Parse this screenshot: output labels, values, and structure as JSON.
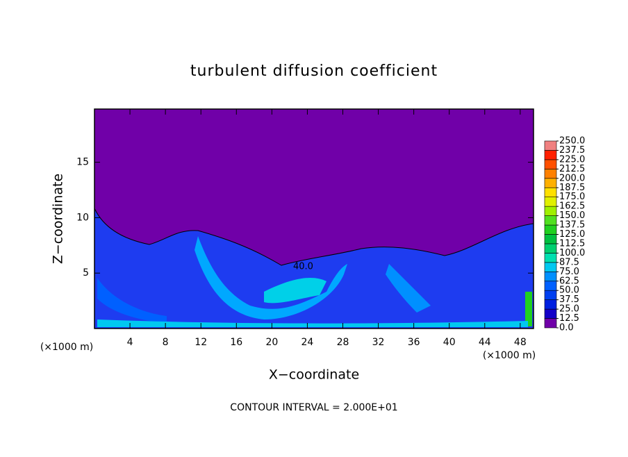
{
  "chart_data": {
    "type": "contour",
    "title": "turbulent diffusion coefficient",
    "xlabel": "X−coordinate",
    "ylabel": "Z−coordinate",
    "x_unit": "(×1000 m)",
    "y_unit": "(×1000 m)",
    "footer": "CONTOUR INTERVAL = 2.000E+01",
    "annotations": [
      "40.0"
    ],
    "xlim": [
      0,
      49.5
    ],
    "ylim": [
      0,
      19.8
    ],
    "xticks": [
      4,
      8,
      12,
      16,
      20,
      24,
      28,
      32,
      36,
      40,
      44,
      48
    ],
    "yticks": [
      5,
      10,
      15
    ],
    "levels": [
      {
        "value": 0,
        "label": "0.0"
      },
      {
        "value": 12.5,
        "label": "12.5"
      },
      {
        "value": 25,
        "label": "25.0"
      },
      {
        "value": 37.5,
        "label": "37.5"
      },
      {
        "value": 50,
        "label": "50.0"
      },
      {
        "value": 62.5,
        "label": "62.5"
      },
      {
        "value": 75,
        "label": "75.0"
      },
      {
        "value": 87.5,
        "label": "87.5"
      },
      {
        "value": 100,
        "label": "100.0"
      },
      {
        "value": 112.5,
        "label": "112.5"
      },
      {
        "value": 125,
        "label": "125.0"
      },
      {
        "value": 137.5,
        "label": "137.5"
      },
      {
        "value": 150,
        "label": "150.0"
      },
      {
        "value": 162.5,
        "label": "162.5"
      },
      {
        "value": 175,
        "label": "175.0"
      },
      {
        "value": 187.5,
        "label": "187.5"
      },
      {
        "value": 200,
        "label": "200.0"
      },
      {
        "value": 212.5,
        "label": "212.5"
      },
      {
        "value": 225,
        "label": "225.0"
      },
      {
        "value": 237.5,
        "label": "237.5"
      },
      {
        "value": 250,
        "label": "250.0"
      }
    ],
    "colors": [
      "#7000a8",
      "#1400c8",
      "#0020e0",
      "#0040f0",
      "#0060ff",
      "#0090ff",
      "#00c8f0",
      "#00e0b0",
      "#00d070",
      "#00c040",
      "#20d020",
      "#50e020",
      "#a0f000",
      "#e0f000",
      "#ffe000",
      "#ffb000",
      "#ff8000",
      "#ff5000",
      "#ff2000",
      "#f08080"
    ]
  }
}
